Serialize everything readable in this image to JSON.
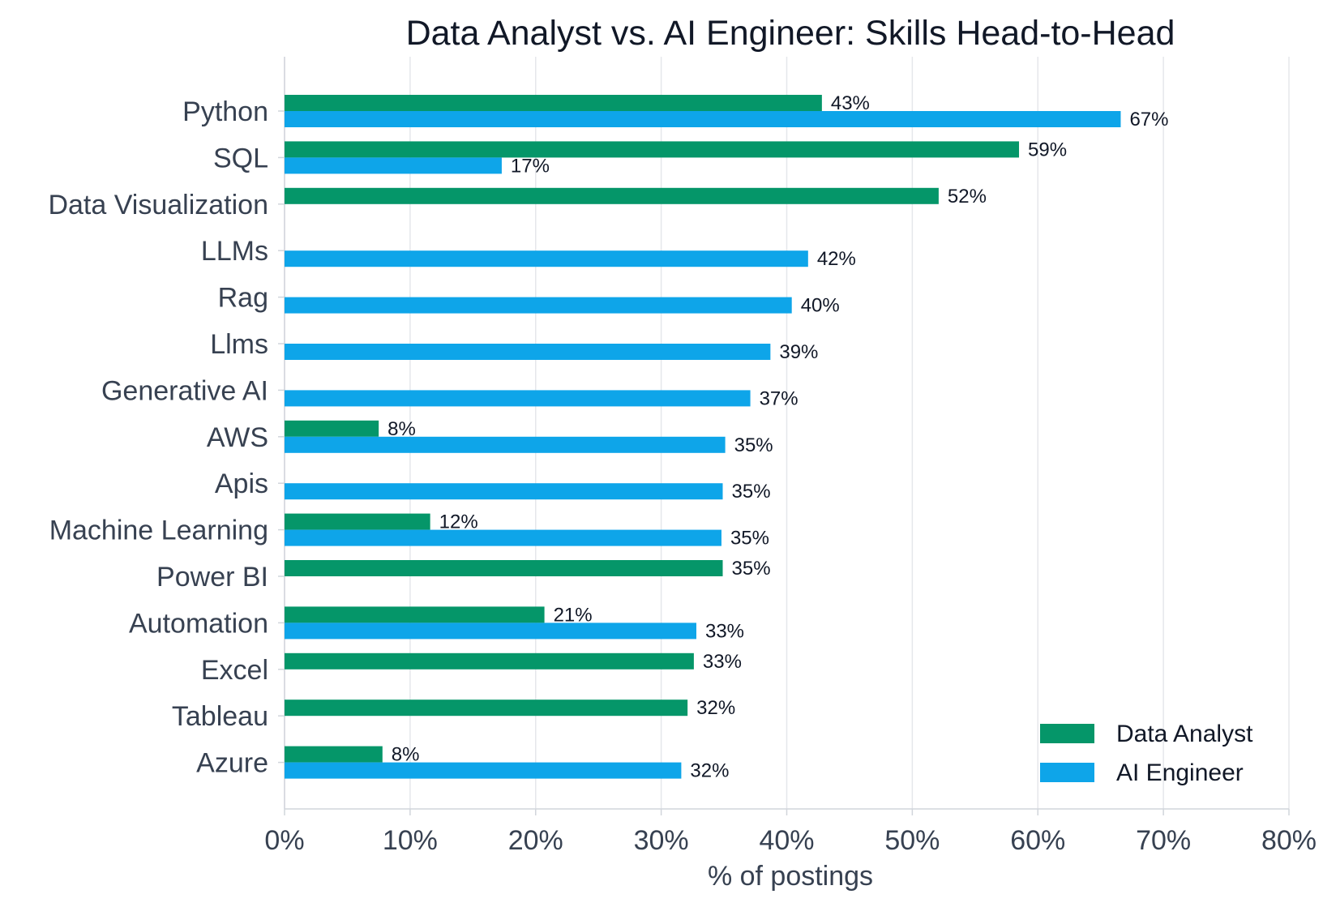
{
  "chart_data": {
    "type": "bar",
    "orientation": "horizontal",
    "title": "Data Analyst vs. AI Engineer: Skills Head-to-Head",
    "xlabel": "% of postings",
    "ylabel": "",
    "xlim": [
      0,
      80
    ],
    "x_ticks": [
      "0%",
      "10%",
      "20%",
      "30%",
      "40%",
      "50%",
      "60%",
      "70%",
      "80%"
    ],
    "grid": "vertical",
    "legend_position": "bottom-right",
    "categories": [
      "Python",
      "SQL",
      "Data Visualization",
      "LLMs",
      "Rag",
      "Llms",
      "Generative AI",
      "AWS",
      "Apis",
      "Machine Learning",
      "Power BI",
      "Automation",
      "Excel",
      "Tableau",
      "Azure"
    ],
    "series": [
      {
        "name": "Data Analyst",
        "color": "#059669",
        "values": [
          42.8,
          58.5,
          52.1,
          null,
          null,
          null,
          null,
          7.5,
          null,
          11.6,
          34.9,
          20.7,
          32.6,
          32.1,
          7.8
        ],
        "labels": [
          "43%",
          "59%",
          "52%",
          "",
          "",
          "",
          "",
          "8%",
          "",
          "12%",
          "35%",
          "21%",
          "33%",
          "32%",
          "8%"
        ]
      },
      {
        "name": "AI Engineer",
        "color": "#0ea5e9",
        "values": [
          66.6,
          17.3,
          null,
          41.7,
          40.4,
          38.7,
          37.1,
          35.1,
          34.9,
          34.8,
          null,
          32.8,
          null,
          null,
          31.6
        ],
        "labels": [
          "67%",
          "17%",
          "",
          "42%",
          "40%",
          "39%",
          "37%",
          "35%",
          "35%",
          "35%",
          "",
          "33%",
          "",
          "",
          "32%"
        ]
      }
    ]
  }
}
